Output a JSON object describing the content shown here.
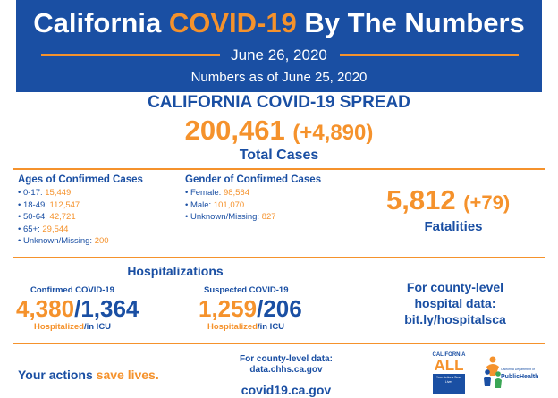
{
  "header": {
    "title_part1": "California",
    "title_part2": "COVID-19",
    "title_part3": "By The Numbers",
    "date": "June 26, 2020",
    "subtitle": "Numbers as of June 25, 2020"
  },
  "spread": {
    "title": "CALIFORNIA COVID-19 SPREAD",
    "total": "200,461",
    "delta": "(+4,890)",
    "label": "Total Cases"
  },
  "ages": {
    "title": "Ages of Confirmed Cases",
    "items": [
      {
        "label": "• 0-17:",
        "value": "15,449"
      },
      {
        "label": "• 18-49:",
        "value": "112,547"
      },
      {
        "label": "• 50-64:",
        "value": "42,721"
      },
      {
        "label": "• 65+:",
        "value": "29,544"
      },
      {
        "label": "• Unknown/Missing:",
        "value": "200"
      }
    ]
  },
  "gender": {
    "title": "Gender of Confirmed Cases",
    "items": [
      {
        "label": "• Female:",
        "value": "98,564"
      },
      {
        "label": "• Male:",
        "value": "101,070"
      },
      {
        "label": "• Unknown/Missing:",
        "value": "827"
      }
    ]
  },
  "fatalities": {
    "total": "5,812",
    "delta": "(+79)",
    "label": "Fatalities"
  },
  "hospitalizations": {
    "title": "Hospitalizations",
    "confirmed": {
      "label": "Confirmed COVID-19",
      "hospitalized": "4,380",
      "sep": "/",
      "icu": "1,364",
      "hosp_caption": "Hospitalized",
      "icu_caption": "/in ICU"
    },
    "suspected": {
      "label": "Suspected COVID-19",
      "hospitalized": "1,259",
      "sep": "/",
      "icu": "206",
      "hosp_caption": "Hospitalized",
      "icu_caption": "/in ICU"
    },
    "county": {
      "line1": "For county-level",
      "line2": "hospital data:",
      "line3": "bit.ly/hospitalsca"
    }
  },
  "footer": {
    "actions_part1": "Your actions",
    "actions_part2": "save lives.",
    "county_line1": "For county-level data:",
    "county_line2": "data.chhs.ca.gov",
    "site": "covid19.ca.gov",
    "ca_logo_top": "CALIFORNIA",
    "ca_logo_main": "ALL",
    "ca_logo_tag": "Your Actions Save Lives",
    "ph_small": "California Department of",
    "ph_text": "PublicHealth"
  },
  "colors": {
    "blue": "#1a4fa3",
    "orange": "#f5922c"
  }
}
